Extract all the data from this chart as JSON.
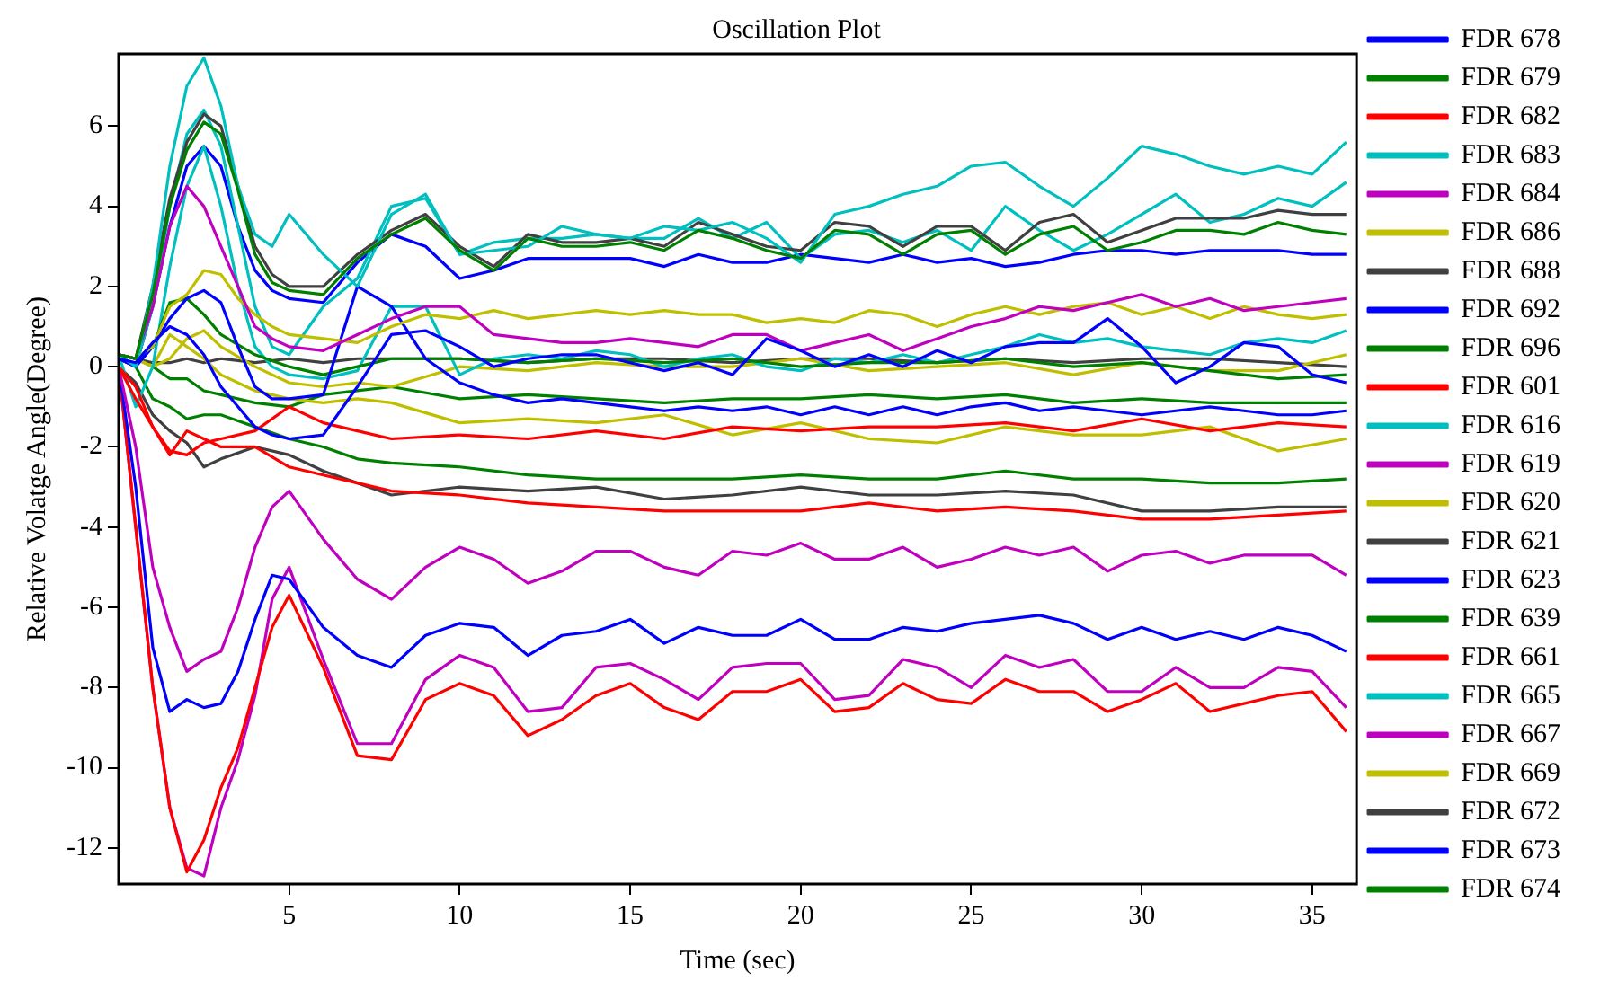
{
  "chart_data": {
    "type": "line",
    "title": "Oscillation Plot",
    "xlabel": "Time (sec)",
    "ylabel": "Relative Volatge Angle(Degree)",
    "legend": "right",
    "xlim": [
      0,
      36.3
    ],
    "ylim": [
      -12.9,
      7.8
    ],
    "xticks": [
      5,
      10,
      15,
      20,
      25,
      30,
      35
    ],
    "yticks": [
      -12,
      -10,
      -8,
      -6,
      -4,
      -2,
      0,
      2,
      4,
      6
    ],
    "x": [
      0,
      0.5,
      1,
      1.5,
      2,
      2.5,
      3,
      3.5,
      4,
      4.5,
      5,
      6,
      7,
      8,
      9,
      10,
      11,
      12,
      13,
      14,
      15,
      16,
      17,
      18,
      19,
      20,
      21,
      22,
      23,
      24,
      25,
      26,
      27,
      28,
      29,
      30,
      31,
      32,
      33,
      34,
      35,
      36
    ],
    "series": [
      {
        "name": "FDR 678",
        "color": "#0000ff",
        "values": [
          0.2,
          0.1,
          0.6,
          1.0,
          0.8,
          0.3,
          -0.5,
          -1.0,
          -1.5,
          -1.7,
          -1.8,
          -1.7,
          -0.5,
          0.8,
          0.9,
          0.5,
          0.0,
          0.2,
          0.3,
          0.3,
          0.1,
          -0.1,
          0.1,
          -0.2,
          0.7,
          0.4,
          0.0,
          0.3,
          0.0,
          0.4,
          0.1,
          0.5,
          0.6,
          0.6,
          1.2,
          0.5,
          -0.4,
          0.0,
          0.6,
          0.5,
          -0.2,
          -0.4
        ]
      },
      {
        "name": "FDR 679",
        "color": "#008000",
        "values": [
          0.3,
          0.2,
          1.8,
          4.0,
          5.4,
          6.1,
          5.8,
          4.4,
          2.8,
          2.1,
          1.9,
          1.8,
          2.7,
          3.3,
          3.7,
          2.9,
          2.4,
          3.2,
          3.0,
          3.0,
          3.1,
          2.9,
          3.4,
          3.2,
          2.9,
          2.7,
          3.4,
          3.3,
          2.8,
          3.3,
          3.4,
          2.8,
          3.3,
          3.5,
          2.9,
          3.1,
          3.4,
          3.4,
          3.3,
          3.6,
          3.4,
          3.3
        ]
      },
      {
        "name": "FDR 682",
        "color": "#ff0000",
        "x": [
          0,
          0.5,
          1,
          1.5,
          2,
          2.5,
          3,
          4,
          5,
          6,
          7,
          8,
          10,
          12,
          14,
          16,
          18,
          20,
          22,
          24,
          26,
          28,
          30,
          32,
          34,
          36
        ],
        "values": [
          0,
          -0.8,
          -1.5,
          -2.1,
          -2.2,
          -1.9,
          -1.8,
          -1.6,
          -1.0,
          -1.4,
          -1.6,
          -1.8,
          -1.7,
          -1.8,
          -1.6,
          -1.8,
          -1.5,
          -1.6,
          -1.5,
          -1.5,
          -1.4,
          -1.6,
          -1.3,
          -1.6,
          -1.4,
          -1.5
        ]
      },
      {
        "name": "FDR 683",
        "color": "#00bfbf",
        "values": [
          0.3,
          0,
          2,
          5,
          7.0,
          7.7,
          6.5,
          4.5,
          3.3,
          3.0,
          3.8,
          2.8,
          2.0,
          3.8,
          4.3,
          2.8,
          2.9,
          3.0,
          3.5,
          3.3,
          3.2,
          3.5,
          3.4,
          3.6,
          3.2,
          2.6,
          3.8,
          4.0,
          4.3,
          4.5,
          5.0,
          5.1,
          4.5,
          4.0,
          4.7,
          5.5,
          5.3,
          5.0,
          4.8,
          5.0,
          4.8,
          5.6
        ]
      },
      {
        "name": "FDR 684",
        "color": "#bf00bf",
        "values": [
          0.3,
          0.2,
          1.5,
          3.5,
          4.5,
          4.0,
          3.0,
          2.0,
          1.0,
          0.7,
          0.5,
          0.4,
          0.8,
          1.2,
          1.5,
          1.5,
          0.8,
          0.7,
          0.6,
          0.6,
          0.7,
          0.6,
          0.5,
          0.8,
          0.8,
          0.4,
          0.6,
          0.8,
          0.4,
          0.7,
          1.0,
          1.2,
          1.5,
          1.4,
          1.6,
          1.8,
          1.5,
          1.7,
          1.4,
          1.5,
          1.6,
          1.7
        ]
      },
      {
        "name": "FDR 686",
        "color": "#bfbf00",
        "values": [
          0.3,
          0.2,
          0.5,
          1.5,
          1.8,
          2.4,
          2.3,
          1.7,
          1.3,
          1.0,
          0.8,
          0.7,
          0.6,
          1.0,
          1.3,
          1.2,
          1.4,
          1.2,
          1.3,
          1.4,
          1.3,
          1.4,
          1.3,
          1.3,
          1.1,
          1.2,
          1.1,
          1.4,
          1.3,
          1.0,
          1.3,
          1.5,
          1.3,
          1.5,
          1.6,
          1.3,
          1.5,
          1.2,
          1.5,
          1.3,
          1.2,
          1.3
        ]
      },
      {
        "name": "FDR 688",
        "color": "#404040",
        "values": [
          0.3,
          0.2,
          2,
          4.2,
          5.6,
          6.3,
          6.0,
          4.5,
          3.0,
          2.3,
          2.0,
          2.0,
          2.8,
          3.4,
          3.8,
          3.0,
          2.5,
          3.3,
          3.1,
          3.1,
          3.2,
          3.0,
          3.6,
          3.3,
          3.0,
          2.9,
          3.6,
          3.5,
          3.0,
          3.5,
          3.5,
          2.9,
          3.6,
          3.8,
          3.1,
          3.4,
          3.7,
          3.7,
          3.7,
          3.9,
          3.8,
          3.8
        ]
      },
      {
        "name": "FDR 692",
        "color": "#0000ff",
        "values": [
          0.2,
          0,
          0.5,
          1.2,
          1.7,
          1.9,
          1.6,
          0.5,
          -0.5,
          -0.8,
          -0.8,
          -0.7,
          2.0,
          1.5,
          0.2,
          -0.4,
          -0.7,
          -0.9,
          -0.8,
          -0.9,
          -1.0,
          -1.1,
          -1.0,
          -1.1,
          -1.0,
          -1.2,
          -1.0,
          -1.2,
          -1.0,
          -1.2,
          -1.0,
          -0.9,
          -1.1,
          -1.0,
          -1.1,
          -1.2,
          -1.1,
          -1.0,
          -1.1,
          -1.2,
          -1.2,
          -1.1
        ]
      },
      {
        "name": "FDR 696",
        "color": "#008000",
        "x": [
          0,
          0.5,
          1,
          1.5,
          2,
          2.5,
          3,
          4,
          5,
          6,
          7,
          8,
          10,
          12,
          14,
          16,
          18,
          20,
          22,
          24,
          26,
          28,
          30,
          32,
          34,
          36
        ],
        "values": [
          0.3,
          0.2,
          0.5,
          1.6,
          1.7,
          1.3,
          0.8,
          0.3,
          0,
          -0.2,
          0,
          0.2,
          0.2,
          0.1,
          0.2,
          0.1,
          0.2,
          0.0,
          0.1,
          0.1,
          0.2,
          0.0,
          0.1,
          -0.1,
          -0.3,
          -0.2
        ]
      },
      {
        "name": "FDR 601",
        "color": "#ff0000",
        "x": [
          0,
          0.5,
          1,
          1.5,
          2,
          2.5,
          3,
          4,
          5,
          6,
          7,
          8,
          10,
          12,
          14,
          16,
          18,
          20,
          22,
          24,
          26,
          28,
          30,
          32,
          34,
          36
        ],
        "values": [
          0,
          -0.5,
          -1.5,
          -2.2,
          -1.6,
          -1.8,
          -2.0,
          -2.0,
          -2.5,
          -2.7,
          -2.9,
          -3.1,
          -3.2,
          -3.4,
          -3.5,
          -3.6,
          -3.6,
          -3.6,
          -3.4,
          -3.6,
          -3.5,
          -3.6,
          -3.8,
          -3.8,
          -3.7,
          -3.6
        ]
      },
      {
        "name": "FDR 616",
        "color": "#00bfbf",
        "values": [
          0.3,
          -1.0,
          0,
          2.5,
          4.5,
          5.5,
          4,
          2,
          0.5,
          0.0,
          -0.2,
          -0.3,
          -0.1,
          1.5,
          1.5,
          -0.2,
          0.2,
          0.3,
          0.2,
          0.4,
          0.3,
          0.0,
          0.2,
          0.3,
          0.0,
          -0.1,
          0.2,
          0.1,
          0.3,
          0.1,
          0.3,
          0.5,
          0.8,
          0.6,
          0.7,
          0.5,
          0.4,
          0.3,
          0.6,
          0.7,
          0.6,
          0.9
        ]
      },
      {
        "name": "FDR 619",
        "color": "#bf00bf",
        "values": [
          0,
          -2,
          -5,
          -6.5,
          -7.6,
          -7.3,
          -7.1,
          -6,
          -4.5,
          -3.5,
          -3.1,
          -4.3,
          -5.3,
          -5.8,
          -5.0,
          -4.5,
          -4.8,
          -5.4,
          -5.1,
          -4.6,
          -4.6,
          -5.0,
          -5.2,
          -4.6,
          -4.7,
          -4.4,
          -4.8,
          -4.8,
          -4.5,
          -5.0,
          -4.8,
          -4.5,
          -4.7,
          -4.5,
          -5.1,
          -4.7,
          -4.6,
          -4.9,
          -4.7,
          -4.7,
          -4.7,
          -5.2
        ]
      },
      {
        "name": "FDR 620",
        "color": "#bfbf00",
        "x": [
          0,
          0.5,
          1,
          1.5,
          2,
          2.5,
          3,
          4,
          5,
          6,
          7,
          8,
          10,
          12,
          14,
          16,
          18,
          20,
          22,
          24,
          26,
          28,
          30,
          32,
          34,
          36
        ],
        "values": [
          0.3,
          0.2,
          0,
          0.8,
          0.5,
          0.2,
          -0.2,
          -0.6,
          -0.8,
          -0.9,
          -0.8,
          -0.9,
          -1.4,
          -1.3,
          -1.4,
          -1.2,
          -1.7,
          -1.4,
          -1.8,
          -1.9,
          -1.5,
          -1.7,
          -1.7,
          -1.5,
          -2.1,
          -1.8
        ]
      },
      {
        "name": "FDR 621",
        "color": "#404040",
        "x": [
          0,
          0.5,
          1,
          1.5,
          2,
          2.5,
          3,
          4,
          5,
          6,
          7,
          8,
          10,
          12,
          14,
          16,
          18,
          20,
          22,
          24,
          26,
          28,
          30,
          32,
          34,
          36
        ],
        "values": [
          0,
          -0.4,
          -1.2,
          -1.6,
          -1.9,
          -2.5,
          -2.3,
          -2.0,
          -2.2,
          -2.6,
          -2.9,
          -3.2,
          -3.0,
          -3.1,
          -3.0,
          -3.3,
          -3.2,
          -3.0,
          -3.2,
          -3.2,
          -3.1,
          -3.2,
          -3.6,
          -3.6,
          -3.5,
          -3.5
        ]
      },
      {
        "name": "FDR 623",
        "color": "#0000ff",
        "values": [
          0,
          -3,
          -7,
          -8.6,
          -8.3,
          -8.5,
          -8.4,
          -7.6,
          -6.3,
          -5.2,
          -5.3,
          -6.5,
          -7.2,
          -7.5,
          -6.7,
          -6.4,
          -6.5,
          -7.2,
          -6.7,
          -6.6,
          -6.3,
          -6.9,
          -6.5,
          -6.7,
          -6.7,
          -6.3,
          -6.8,
          -6.8,
          -6.5,
          -6.6,
          -6.4,
          -6.3,
          -6.2,
          -6.4,
          -6.8,
          -6.5,
          -6.8,
          -6.6,
          -6.8,
          -6.5,
          -6.7,
          -7.1
        ]
      },
      {
        "name": "FDR 639",
        "color": "#008000",
        "x": [
          0,
          0.5,
          1,
          1.5,
          2,
          2.5,
          3,
          4,
          5,
          6,
          7,
          8,
          10,
          12,
          14,
          16,
          18,
          20,
          22,
          24,
          26,
          28,
          30,
          32,
          34,
          36
        ],
        "values": [
          0.3,
          0,
          -0.8,
          -1.0,
          -1.3,
          -1.2,
          -1.2,
          -1.5,
          -1.8,
          -2.0,
          -2.3,
          -2.4,
          -2.5,
          -2.7,
          -2.8,
          -2.8,
          -2.8,
          -2.7,
          -2.8,
          -2.8,
          -2.6,
          -2.8,
          -2.8,
          -2.9,
          -2.9,
          -2.8
        ]
      },
      {
        "name": "FDR 661",
        "color": "#ff0000",
        "values": [
          0,
          -4,
          -8,
          -11,
          -12.6,
          -11.8,
          -10.5,
          -9.5,
          -8,
          -6.5,
          -5.7,
          -7.5,
          -9.7,
          -9.8,
          -8.3,
          -7.9,
          -8.2,
          -9.2,
          -8.8,
          -8.2,
          -7.9,
          -8.5,
          -8.8,
          -8.1,
          -8.1,
          -7.8,
          -8.6,
          -8.5,
          -7.9,
          -8.3,
          -8.4,
          -7.8,
          -8.1,
          -8.1,
          -8.6,
          -8.3,
          -7.9,
          -8.6,
          -8.4,
          -8.2,
          -8.1,
          -9.1
        ]
      },
      {
        "name": "FDR 665",
        "color": "#00bfbf",
        "values": [
          0.3,
          0,
          1.5,
          4,
          5.8,
          6.4,
          5.5,
          3.5,
          1.5,
          0.5,
          0.3,
          1.5,
          2.2,
          4.0,
          4.2,
          2.8,
          3.1,
          3.2,
          3.2,
          3.3,
          3.2,
          3.2,
          3.7,
          3.2,
          3.6,
          2.7,
          3.3,
          3.4,
          3.1,
          3.4,
          2.9,
          4.0,
          3.4,
          2.9,
          3.3,
          3.8,
          4.3,
          3.6,
          3.8,
          4.2,
          4.0,
          4.6
        ]
      },
      {
        "name": "FDR 667",
        "color": "#bf00bf",
        "values": [
          0,
          -4,
          -8,
          -11,
          -12.5,
          -12.7,
          -11,
          -9.8,
          -8.2,
          -5.8,
          -5.0,
          -7.3,
          -9.4,
          -9.4,
          -7.8,
          -7.2,
          -7.5,
          -8.6,
          -8.5,
          -7.5,
          -7.4,
          -7.8,
          -8.3,
          -7.5,
          -7.4,
          -7.4,
          -8.3,
          -8.2,
          -7.3,
          -7.5,
          -8.0,
          -7.2,
          -7.5,
          -7.3,
          -8.1,
          -8.1,
          -7.5,
          -8.0,
          -8.0,
          -7.5,
          -7.6,
          -8.5
        ]
      },
      {
        "name": "FDR 669",
        "color": "#bfbf00",
        "x": [
          0,
          0.5,
          1,
          1.5,
          2,
          2.5,
          3,
          4,
          5,
          6,
          7,
          8,
          10,
          12,
          14,
          16,
          18,
          20,
          22,
          24,
          26,
          28,
          30,
          32,
          34,
          36
        ],
        "values": [
          0.3,
          0.2,
          0,
          0.2,
          0.7,
          0.9,
          0.5,
          0,
          -0.4,
          -0.5,
          -0.4,
          -0.5,
          0,
          -0.1,
          0.1,
          0,
          0,
          0.2,
          -0.1,
          0,
          0.1,
          -0.2,
          0.1,
          -0.1,
          -0.1,
          0.3
        ]
      },
      {
        "name": "FDR 672",
        "color": "#404040",
        "x": [
          0,
          0.5,
          1,
          1.5,
          2,
          2.5,
          3,
          4,
          5,
          6,
          7,
          8,
          10,
          12,
          14,
          16,
          18,
          20,
          22,
          24,
          26,
          28,
          30,
          32,
          34,
          36
        ],
        "values": [
          0.3,
          0.2,
          0.1,
          0.1,
          0.2,
          0.1,
          0.2,
          0.1,
          0.2,
          0.1,
          0.2,
          0.2,
          0.2,
          0.1,
          0.2,
          0.2,
          0.1,
          0.2,
          0.2,
          0.1,
          0.2,
          0.1,
          0.2,
          0.2,
          0.1,
          0.0
        ]
      },
      {
        "name": "FDR 673",
        "color": "#0000ff",
        "values": [
          0.2,
          0,
          1.5,
          3.5,
          5.0,
          5.5,
          5.0,
          3.5,
          2.4,
          1.9,
          1.7,
          1.6,
          2.6,
          3.3,
          3.0,
          2.2,
          2.4,
          2.7,
          2.7,
          2.7,
          2.7,
          2.5,
          2.8,
          2.6,
          2.6,
          2.8,
          2.7,
          2.6,
          2.8,
          2.6,
          2.7,
          2.5,
          2.6,
          2.8,
          2.9,
          2.9,
          2.8,
          2.9,
          2.9,
          2.9,
          2.8,
          2.8
        ]
      },
      {
        "name": "FDR 674",
        "color": "#008000",
        "x": [
          0,
          0.5,
          1,
          1.5,
          2,
          2.5,
          3,
          4,
          5,
          6,
          7,
          8,
          10,
          12,
          14,
          16,
          18,
          20,
          22,
          24,
          26,
          28,
          30,
          32,
          34,
          36
        ],
        "values": [
          0.3,
          0.2,
          0,
          -0.3,
          -0.3,
          -0.6,
          -0.7,
          -0.9,
          -1.0,
          -0.7,
          -0.6,
          -0.5,
          -0.8,
          -0.7,
          -0.8,
          -0.9,
          -0.8,
          -0.8,
          -0.7,
          -0.8,
          -0.7,
          -0.9,
          -0.8,
          -0.9,
          -0.9,
          -0.9
        ]
      }
    ]
  }
}
